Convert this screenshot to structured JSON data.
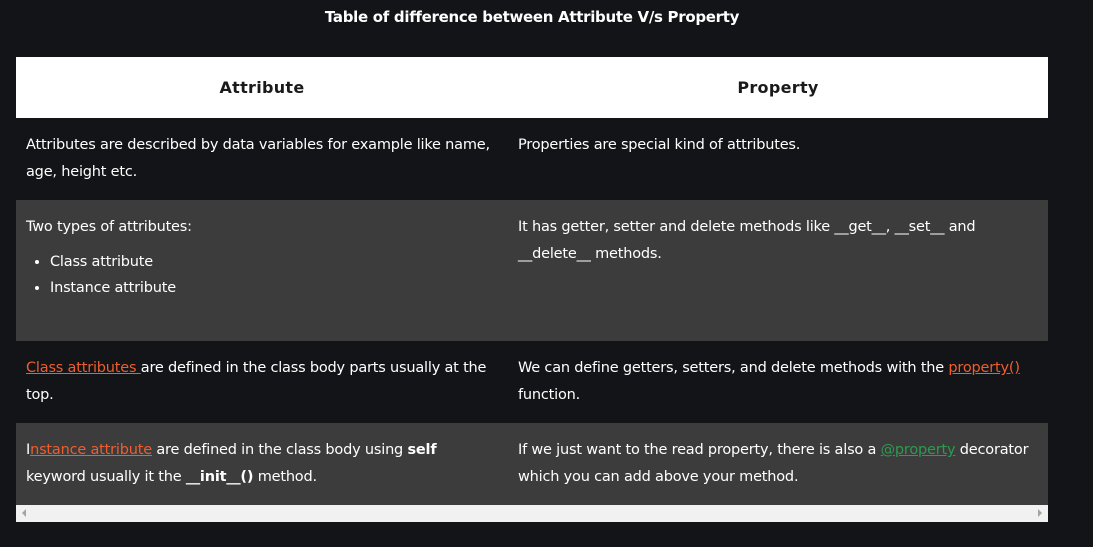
{
  "title": "Table of difference between Attribute V/s Property",
  "headers": {
    "attribute": "Attribute",
    "property": "Property"
  },
  "rows": [
    {
      "left": "Attributes are described by data variables for example like name, age, height etc.",
      "right": "Properties are special kind of attributes."
    },
    {
      "left": "Two types of attributes:",
      "left_items": [
        "Class attribute",
        "Instance attribute"
      ],
      "right": "It has getter, setter and delete methods like __get__, __set__ and __delete__ methods."
    },
    {
      "left_link": "Class attributes ",
      "left_rest": "are defined in the class body parts usually at the top.",
      "right_pre": " We can define getters, setters, and delete methods with the ",
      "right_link": "property()",
      "right_post": " function."
    },
    {
      "left_initial": "I",
      "left_link": "nstance attribute",
      "left_mid": " are defined in the class body using ",
      "left_bold": "self",
      "left_mid2": " keyword usually it the ",
      "left_bold2": "__init__()",
      "left_post": " method.",
      "right_pre": "If we just want to the read property, there is also a ",
      "right_link": "@property",
      "right_post": " decorator which you can add above your method."
    }
  ],
  "colors": {
    "link": "#ef5d2f",
    "decorator": "#2e9a4f",
    "stripe": "#3c3c3c",
    "background": "#131417"
  }
}
